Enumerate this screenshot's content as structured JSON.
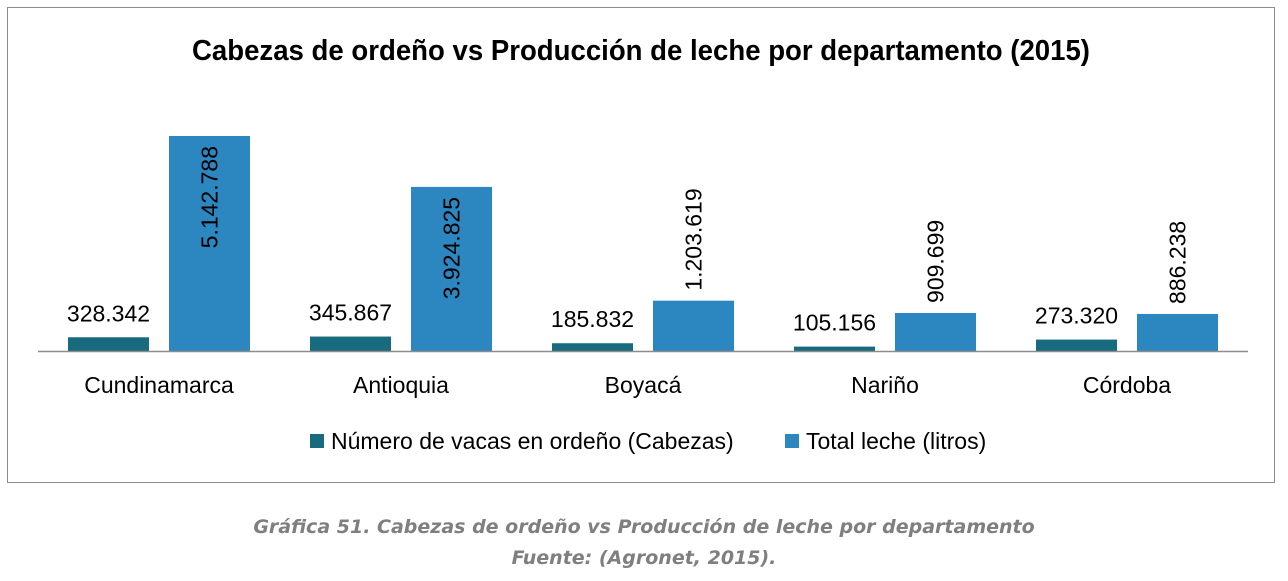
{
  "chart_data": {
    "type": "bar",
    "title": "Cabezas de ordeño vs Producción de leche por departamento (2015)",
    "categories": [
      "Cundinamarca",
      "Antioquia",
      "Boyacá",
      "Nariño",
      "Córdoba"
    ],
    "series": [
      {
        "name": "Número de vacas en ordeño (Cabezas)",
        "values": [
          328342,
          345867,
          185832,
          105156,
          273320
        ],
        "labels": [
          "328.342",
          "345.867",
          "185.832",
          "105.156",
          "273.320"
        ],
        "color": "#186b7f"
      },
      {
        "name": "Total leche (litros)",
        "values": [
          5142788,
          3924825,
          1203619,
          909699,
          886238
        ],
        "labels": [
          "5.142.788",
          "3.924.825",
          "1.203.619",
          "909.699",
          "886.238"
        ],
        "color": "#2c86bf"
      }
    ],
    "legend_position": "bottom",
    "grid": false,
    "ylim": [
      0,
      5142788
    ]
  },
  "caption": {
    "line1": "Gráfica 51. Cabezas de ordeño vs Producción de leche por departamento",
    "line2": "Fuente: (Agronet, 2015)."
  }
}
